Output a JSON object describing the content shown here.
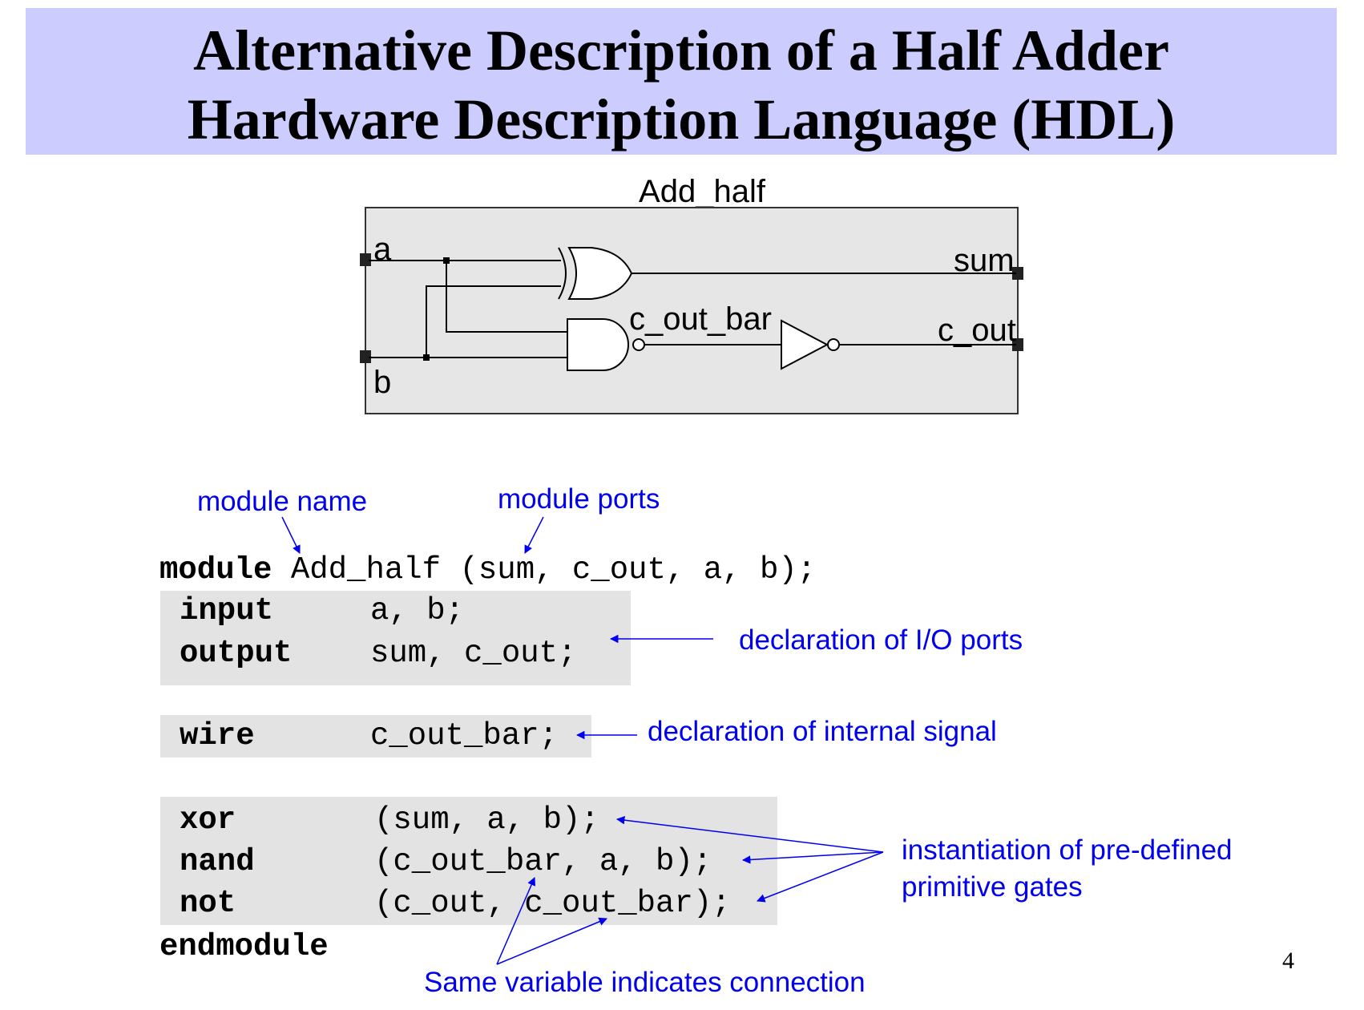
{
  "slide": {
    "title_line1": "Alternative Description of a Half Adder",
    "title_line2": "Hardware Description Language (HDL)",
    "page_number": "4"
  },
  "schematic": {
    "module_label": "Add_half",
    "inputs": [
      "a",
      "b"
    ],
    "outputs": [
      "sum",
      "c_out"
    ],
    "internal_signal": "c_out_bar",
    "gates": [
      "xor",
      "nand",
      "not"
    ]
  },
  "code": {
    "line1_keyword": "module",
    "line1_rest": "Add_half (sum, c_out, a, b);",
    "input_kw": "input",
    "input_args": "a, b;",
    "output_kw": "output",
    "output_args": "sum, c_out;",
    "wire_kw": "wire",
    "wire_args": "c_out_bar;",
    "xor_kw": "xor",
    "xor_args": "(sum, a, b);",
    "nand_kw": "nand",
    "nand_args": "(c_out_bar, a, b);",
    "not_kw": "not",
    "not_args": "(c_out, c_out_bar);",
    "end_kw": "endmodule"
  },
  "annotations": {
    "module_name": "module name",
    "module_ports": "module ports",
    "io_ports": "declaration of I/O ports",
    "internal_signal": "declaration of internal signal",
    "instantiation_line1": "instantiation of pre-defined",
    "instantiation_line2": "primitive gates",
    "same_variable": "Same variable indicates connection"
  },
  "colors": {
    "title_band": "#ccccff",
    "annotation": "#0000ee",
    "code_box": "#e3e3e3",
    "schematic_box": "#e6e6e6"
  }
}
